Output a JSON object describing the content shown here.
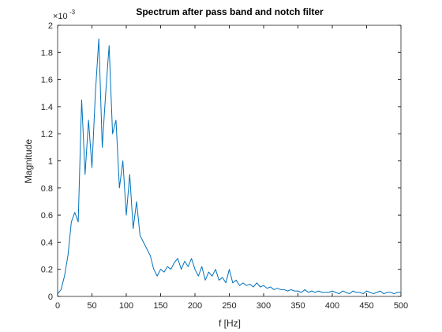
{
  "chart_data": {
    "type": "line",
    "title": "Spectrum after pass band and notch filter",
    "x_label": "f [Hz]",
    "y_label": "Magnitude",
    "y_multiplier_base": "×10",
    "y_multiplier_exponent": "-3",
    "xlim": [
      0,
      500
    ],
    "ylim": [
      0,
      2
    ],
    "xticks": [
      0,
      50,
      100,
      150,
      200,
      250,
      300,
      350,
      400,
      450,
      500
    ],
    "yticks": [
      0,
      0.2,
      0.4,
      0.6,
      0.8,
      1,
      1.2,
      1.4,
      1.6,
      1.8,
      2
    ],
    "grid": false,
    "x": [
      0,
      5,
      10,
      15,
      20,
      25,
      30,
      35,
      40,
      45,
      50,
      55,
      60,
      65,
      70,
      75,
      80,
      85,
      90,
      95,
      100,
      105,
      110,
      115,
      120,
      125,
      130,
      135,
      140,
      145,
      150,
      155,
      160,
      165,
      170,
      175,
      180,
      185,
      190,
      195,
      200,
      205,
      210,
      215,
      220,
      225,
      230,
      235,
      240,
      245,
      250,
      255,
      260,
      265,
      270,
      275,
      280,
      285,
      290,
      295,
      300,
      305,
      310,
      315,
      320,
      325,
      330,
      335,
      340,
      345,
      350,
      355,
      360,
      365,
      370,
      375,
      380,
      385,
      390,
      395,
      400,
      405,
      410,
      415,
      420,
      425,
      430,
      435,
      440,
      445,
      450,
      455,
      460,
      465,
      470,
      475,
      480,
      485,
      490,
      495,
      500
    ],
    "series": [
      {
        "name": "Spectrum",
        "color": "#0072bd",
        "values": [
          0.02,
          0.05,
          0.15,
          0.3,
          0.55,
          0.62,
          0.55,
          1.45,
          0.9,
          1.3,
          0.95,
          1.5,
          1.9,
          1.1,
          1.5,
          1.85,
          1.2,
          1.3,
          0.8,
          1.0,
          0.6,
          0.9,
          0.5,
          0.7,
          0.45,
          0.4,
          0.35,
          0.3,
          0.2,
          0.15,
          0.2,
          0.18,
          0.22,
          0.2,
          0.25,
          0.28,
          0.2,
          0.26,
          0.22,
          0.28,
          0.2,
          0.15,
          0.22,
          0.12,
          0.18,
          0.15,
          0.2,
          0.12,
          0.14,
          0.1,
          0.2,
          0.1,
          0.12,
          0.08,
          0.1,
          0.08,
          0.09,
          0.07,
          0.1,
          0.07,
          0.08,
          0.06,
          0.07,
          0.05,
          0.06,
          0.05,
          0.05,
          0.04,
          0.05,
          0.04,
          0.04,
          0.03,
          0.05,
          0.03,
          0.04,
          0.03,
          0.04,
          0.03,
          0.03,
          0.03,
          0.04,
          0.03,
          0.02,
          0.04,
          0.03,
          0.02,
          0.04,
          0.03,
          0.03,
          0.02,
          0.04,
          0.03,
          0.02,
          0.03,
          0.04,
          0.02,
          0.03,
          0.03,
          0.02,
          0.03,
          0.03
        ]
      }
    ]
  }
}
